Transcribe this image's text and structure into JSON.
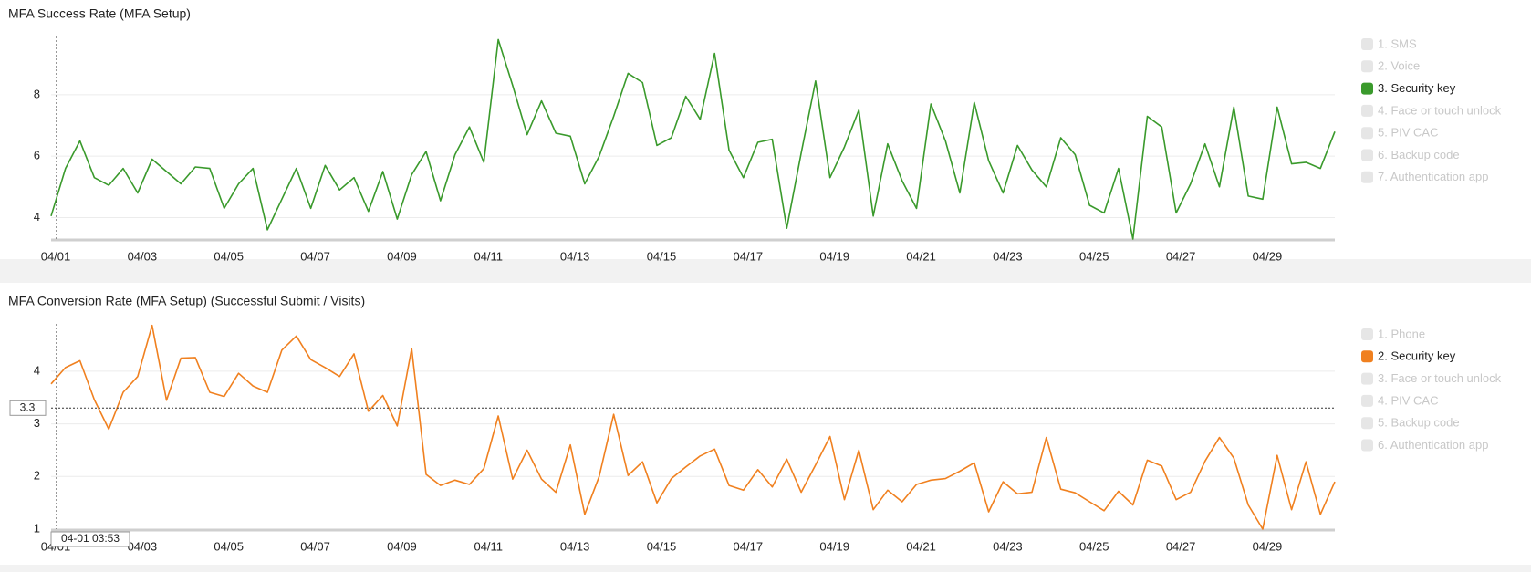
{
  "chart_data": [
    {
      "type": "line",
      "title": "MFA Success Rate (MFA Setup)",
      "categories": [
        "04/01",
        null,
        null,
        null,
        null,
        null,
        "04/03",
        null,
        null,
        null,
        null,
        null,
        "04/05",
        null,
        null,
        null,
        null,
        null,
        "04/07",
        null,
        null,
        null,
        null,
        null,
        "04/09",
        null,
        null,
        null,
        null,
        null,
        "04/11",
        null,
        null,
        null,
        null,
        null,
        "04/13",
        null,
        null,
        null,
        null,
        null,
        "04/15",
        null,
        null,
        null,
        null,
        null,
        "04/17",
        null,
        null,
        null,
        null,
        null,
        "04/19",
        null,
        null,
        null,
        null,
        null,
        "04/21",
        null,
        null,
        null,
        null,
        null,
        "04/23",
        null,
        null,
        null,
        null,
        null,
        "04/25",
        null,
        null,
        null,
        null,
        null,
        "04/27",
        null,
        null,
        null,
        null,
        null,
        "04/29",
        null,
        null,
        null,
        null,
        null
      ],
      "series": [
        {
          "color": "#3a9a2c",
          "values": [
            4.05,
            5.6,
            6.5,
            5.3,
            5.05,
            5.6,
            4.8,
            5.9,
            5.5,
            5.1,
            5.65,
            5.6,
            4.3,
            5.1,
            5.6,
            3.6,
            4.6,
            5.6,
            4.3,
            5.7,
            4.9,
            5.3,
            4.2,
            5.5,
            3.95,
            5.4,
            6.15,
            4.55,
            6.05,
            6.95,
            5.8,
            9.8,
            8.3,
            6.7,
            7.8,
            6.75,
            6.65,
            5.1,
            6.0,
            7.3,
            8.7,
            8.4,
            6.35,
            6.6,
            7.95,
            7.2,
            9.35,
            6.2,
            5.3,
            6.45,
            6.55,
            3.65,
            6.1,
            8.45,
            5.3,
            6.3,
            7.5,
            4.05,
            6.4,
            5.2,
            4.3,
            7.7,
            6.5,
            4.8,
            7.75,
            5.85,
            4.8,
            6.35,
            5.55,
            5.0,
            6.6,
            6.05,
            4.4,
            4.15,
            5.6,
            3.3,
            7.3,
            6.95,
            4.15,
            5.1,
            6.4,
            5.0,
            7.6,
            4.7,
            4.6,
            7.6,
            5.75,
            5.8,
            5.6,
            6.8
          ]
        }
      ],
      "legend": {
        "items": [
          "1. SMS",
          "2. Voice",
          "3. Security key",
          "4. Face or touch unlock",
          "5. PIV CAC",
          "6. Backup code",
          "7. Authentication app"
        ],
        "active": 2
      },
      "ylim": [
        3.3,
        9.9
      ],
      "yticks": [
        4,
        6,
        8
      ],
      "grid": true
    },
    {
      "type": "line",
      "title": "MFA Conversion Rate (MFA Setup) (Successful Submit / Visits)",
      "categories": [
        "04/01",
        null,
        null,
        null,
        null,
        null,
        "04/03",
        null,
        null,
        null,
        null,
        null,
        "04/05",
        null,
        null,
        null,
        null,
        null,
        "04/07",
        null,
        null,
        null,
        null,
        null,
        "04/09",
        null,
        null,
        null,
        null,
        null,
        "04/11",
        null,
        null,
        null,
        null,
        null,
        "04/13",
        null,
        null,
        null,
        null,
        null,
        "04/15",
        null,
        null,
        null,
        null,
        null,
        "04/17",
        null,
        null,
        null,
        null,
        null,
        "04/19",
        null,
        null,
        null,
        null,
        null,
        "04/21",
        null,
        null,
        null,
        null,
        null,
        "04/23",
        null,
        null,
        null,
        null,
        null,
        "04/25",
        null,
        null,
        null,
        null,
        null,
        "04/27",
        null,
        null,
        null,
        null,
        null,
        "04/29",
        null,
        null,
        null,
        null,
        null
      ],
      "series": [
        {
          "color": "#f0801f",
          "values": [
            3.76,
            4.07,
            4.2,
            3.46,
            2.9,
            3.6,
            3.9,
            4.87,
            3.45,
            4.25,
            4.26,
            3.6,
            3.52,
            3.96,
            3.72,
            3.6,
            4.4,
            4.67,
            4.22,
            4.07,
            3.9,
            4.33,
            3.24,
            3.54,
            2.96,
            4.43,
            2.04,
            1.83,
            1.93,
            1.85,
            2.15,
            3.15,
            1.95,
            2.5,
            1.95,
            1.7,
            2.6,
            1.28,
            2.0,
            3.18,
            2.02,
            2.28,
            1.5,
            1.96,
            2.18,
            2.39,
            2.52,
            1.83,
            1.74,
            2.13,
            1.8,
            2.33,
            1.7,
            2.22,
            2.76,
            1.56,
            2.5,
            1.37,
            1.74,
            1.52,
            1.85,
            1.93,
            1.96,
            2.1,
            2.26,
            1.33,
            1.9,
            1.67,
            1.7,
            2.74,
            1.76,
            1.69,
            1.52,
            1.35,
            1.72,
            1.46,
            2.31,
            2.2,
            1.56,
            1.7,
            2.29,
            2.74,
            2.35,
            1.46,
            1.0,
            2.4,
            1.37,
            2.28,
            1.28,
            1.9
          ]
        }
      ],
      "legend": {
        "items": [
          "1. Phone",
          "2. Security key",
          "3. Face or touch unlock",
          "4. PIV CAC",
          "5. Backup code",
          "6. Authentication app"
        ],
        "active": 1
      },
      "ylim": [
        1,
        4.9
      ],
      "yticks": [
        1,
        2,
        3,
        4
      ],
      "grid": true,
      "crosshair": {
        "y": 3.3,
        "x_label": "04-01 03:53"
      }
    }
  ]
}
